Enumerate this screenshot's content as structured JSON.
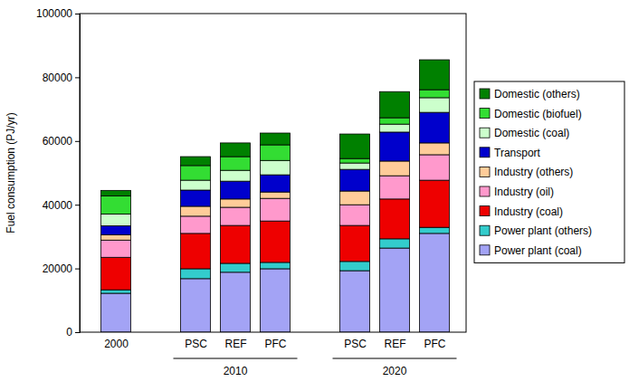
{
  "chart_data": {
    "type": "bar",
    "stacked": true,
    "y_label": "Fuel consumption (PJ/yr)",
    "categories": [
      "2000",
      "PSC",
      "REF",
      "PFC",
      "PSC",
      "REF",
      "PFC"
    ],
    "category_groups": [
      null,
      "2010",
      "2010",
      "2010",
      "2020",
      "2020",
      "2020"
    ],
    "ylim": [
      0,
      100000
    ],
    "yticks": [
      0,
      20000,
      40000,
      60000,
      80000,
      100000
    ],
    "grid": false,
    "legend": "right",
    "series": [
      {
        "name": "Power plant (coal)",
        "color": "#a3a3f5",
        "values": [
          12200,
          16800,
          18800,
          19900,
          19300,
          26400,
          31000
        ]
      },
      {
        "name": "Power plant (others)",
        "color": "#33cccc",
        "values": [
          1100,
          3100,
          2800,
          2000,
          2900,
          2900,
          1900
        ]
      },
      {
        "name": "Industry (coal)",
        "color": "#ee0000",
        "values": [
          10200,
          11100,
          11900,
          13000,
          11300,
          12500,
          14800
        ]
      },
      {
        "name": "Industry (oil)",
        "color": "#ff99cc",
        "values": [
          5400,
          5400,
          5700,
          7100,
          6500,
          7300,
          8000
        ]
      },
      {
        "name": "Industry (others)",
        "color": "#ffcc99",
        "values": [
          1700,
          3100,
          2600,
          2000,
          4300,
          4600,
          3700
        ]
      },
      {
        "name": "Transport",
        "color": "#0000cc",
        "values": [
          2800,
          5100,
          5600,
          5400,
          6800,
          9100,
          9600
        ]
      },
      {
        "name": "Domestic (coal)",
        "color": "#ccffcc",
        "values": [
          3700,
          3100,
          3400,
          4500,
          2000,
          2500,
          4600
        ]
      },
      {
        "name": "Domestic (biofuel)",
        "color": "#33dd33",
        "values": [
          5700,
          4600,
          4300,
          4900,
          1400,
          2000,
          2500
        ]
      },
      {
        "name": "Domestic (others)",
        "color": "#008000",
        "values": [
          1700,
          2800,
          4300,
          3700,
          7700,
          8200,
          9400
        ]
      }
    ]
  }
}
